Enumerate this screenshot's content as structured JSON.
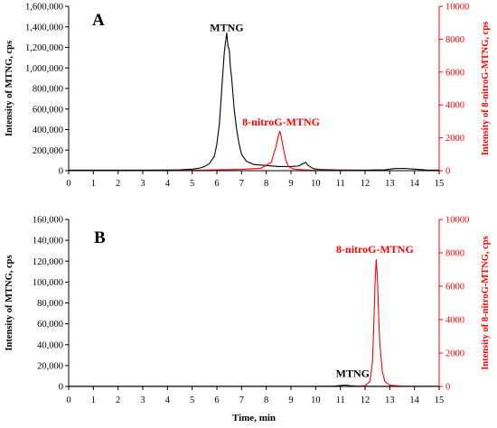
{
  "colors": {
    "black_series": "#000000",
    "red_series": "#ff0000",
    "axis": "#000000"
  },
  "chart_data": [
    {
      "panel_label": "A",
      "type": "line",
      "xlabel": "",
      "ylabel_left": "Intensity of MTNG, cps",
      "ylabel_right": "Intensity of 8-nitroG-MTNG, cps",
      "xlim": [
        0,
        15
      ],
      "ylim_left": [
        0,
        1600000
      ],
      "ylim_right": [
        0,
        10000
      ],
      "x_ticks": [
        "0",
        "1",
        "2",
        "3",
        "4",
        "5",
        "6",
        "7",
        "8",
        "9",
        "10",
        "11",
        "12",
        "13",
        "14",
        "15"
      ],
      "y_ticks_left": [
        "0",
        "200,000",
        "400,000",
        "600,000",
        "800,000",
        "1,000,000",
        "1,200,000",
        "1,400,000",
        "1,600,000"
      ],
      "y_ticks_right": [
        "0",
        "2000",
        "4000",
        "6000",
        "8000",
        "10000"
      ],
      "annotations": [
        {
          "text": "MTNG",
          "x": 6.4,
          "y_left": 1360000,
          "color": "#000000"
        },
        {
          "text": "8-nitroG-MTNG",
          "x": 8.6,
          "y_left": 440000,
          "color": "#ff0000"
        }
      ],
      "series": [
        {
          "axis": "left",
          "color": "#000000",
          "x": [
            0,
            1,
            2,
            3,
            4,
            4.5,
            5,
            5.3,
            5.5,
            5.7,
            5.9,
            6.0,
            6.1,
            6.2,
            6.3,
            6.35,
            6.4,
            6.45,
            6.5,
            6.55,
            6.6,
            6.7,
            6.8,
            6.9,
            7.0,
            7.2,
            7.5,
            8.0,
            8.5,
            9.0,
            9.3,
            9.5,
            9.6,
            9.7,
            9.9,
            10.2,
            11,
            12,
            12.8,
            13.2,
            13.6,
            14,
            14.5,
            15
          ],
          "y": [
            5000,
            5000,
            5000,
            5000,
            6000,
            8000,
            15000,
            25000,
            40000,
            70000,
            140000,
            260000,
            450000,
            800000,
            1150000,
            1250000,
            1340000,
            1210000,
            1180000,
            1000000,
            900000,
            600000,
            400000,
            260000,
            160000,
            90000,
            60000,
            50000,
            40000,
            40000,
            45000,
            70000,
            80000,
            50000,
            20000,
            10000,
            6000,
            5000,
            8000,
            20000,
            22000,
            15000,
            6000,
            5000
          ]
        },
        {
          "axis": "right",
          "color": "#ff0000",
          "x": [
            0,
            2,
            4,
            6,
            7,
            7.8,
            8.2,
            8.4,
            8.5,
            8.55,
            8.6,
            8.7,
            8.8,
            8.9,
            9.1,
            9.5,
            10,
            12,
            15
          ],
          "y": [
            0,
            0,
            0,
            50,
            80,
            150,
            500,
            1500,
            2200,
            2400,
            2100,
            1300,
            600,
            250,
            100,
            50,
            20,
            0,
            0
          ]
        }
      ]
    },
    {
      "panel_label": "B",
      "type": "line",
      "xlabel": "Time, min",
      "ylabel_left": "Intensity of MTNG, cps",
      "ylabel_right": "Intensity of 8-nitroG-MTNG, cps",
      "xlim": [
        0,
        15
      ],
      "ylim_left": [
        0,
        160000
      ],
      "ylim_right": [
        0,
        10000
      ],
      "x_ticks": [
        "0",
        "1",
        "2",
        "3",
        "4",
        "5",
        "6",
        "7",
        "8",
        "9",
        "10",
        "11",
        "12",
        "13",
        "14",
        "15"
      ],
      "y_ticks_left": [
        "0",
        "20,000",
        "40,000",
        "60,000",
        "80,000",
        "100,000",
        "120,000",
        "140,000",
        "160,000"
      ],
      "y_ticks_right": [
        "0",
        "2000",
        "4000",
        "6000",
        "8000",
        "10000"
      ],
      "annotations": [
        {
          "text": "MTNG",
          "x": 11.5,
          "y_left": 9000,
          "color": "#000000"
        },
        {
          "text": "8-nitroG-MTNG",
          "x": 12.4,
          "y_left": 128000,
          "color": "#ff0000"
        }
      ],
      "series": [
        {
          "axis": "left",
          "color": "#000000",
          "x": [
            0,
            2,
            4,
            6,
            8,
            10,
            10.8,
            11.0,
            11.2,
            11.4,
            11.6,
            11.8,
            12.0,
            13,
            15
          ],
          "y": [
            200,
            200,
            200,
            200,
            200,
            200,
            400,
            900,
            1300,
            700,
            500,
            300,
            200,
            200,
            200
          ]
        },
        {
          "axis": "right",
          "color": "#ff0000",
          "x": [
            0,
            5,
            10,
            11.5,
            12.0,
            12.2,
            12.3,
            12.35,
            12.4,
            12.45,
            12.5,
            12.55,
            12.6,
            12.7,
            12.8,
            13.0,
            13.5,
            15
          ],
          "y": [
            0,
            0,
            0,
            0,
            50,
            300,
            1500,
            3500,
            6000,
            7600,
            6500,
            4200,
            2500,
            900,
            300,
            80,
            20,
            0
          ]
        }
      ]
    }
  ]
}
